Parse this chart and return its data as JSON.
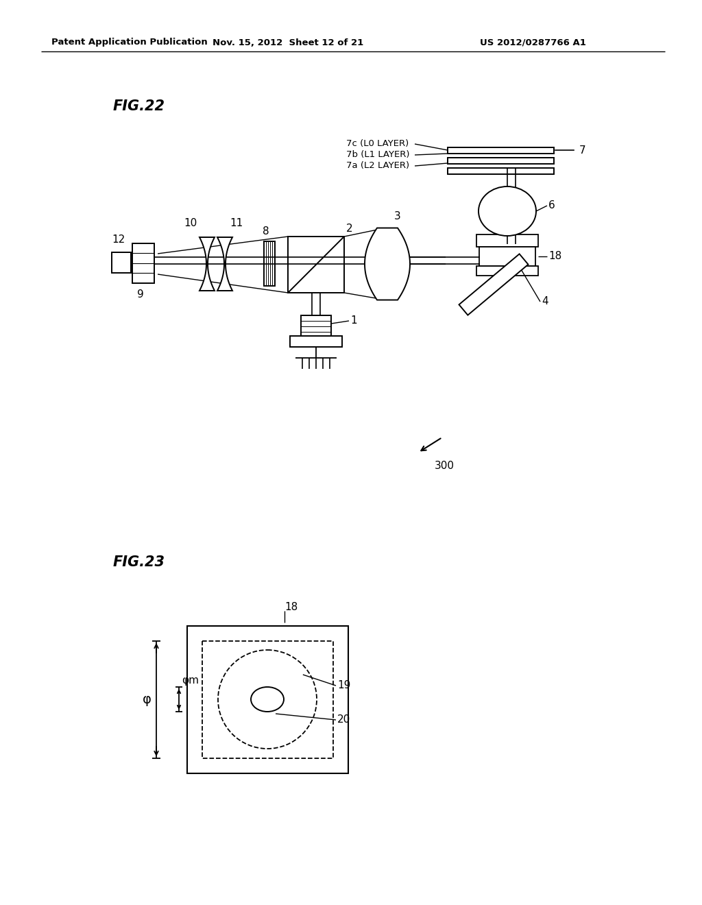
{
  "bg_color": "#ffffff",
  "line_color": "#000000",
  "header_left": "Patent Application Publication",
  "header_center": "Nov. 15, 2012  Sheet 12 of 21",
  "header_right": "US 2012/0287766 A1",
  "fig22_title": "FIG.22",
  "fig23_title": "FIG.23",
  "label_300": "300",
  "phi_label": "φ",
  "phim_label": "φm"
}
